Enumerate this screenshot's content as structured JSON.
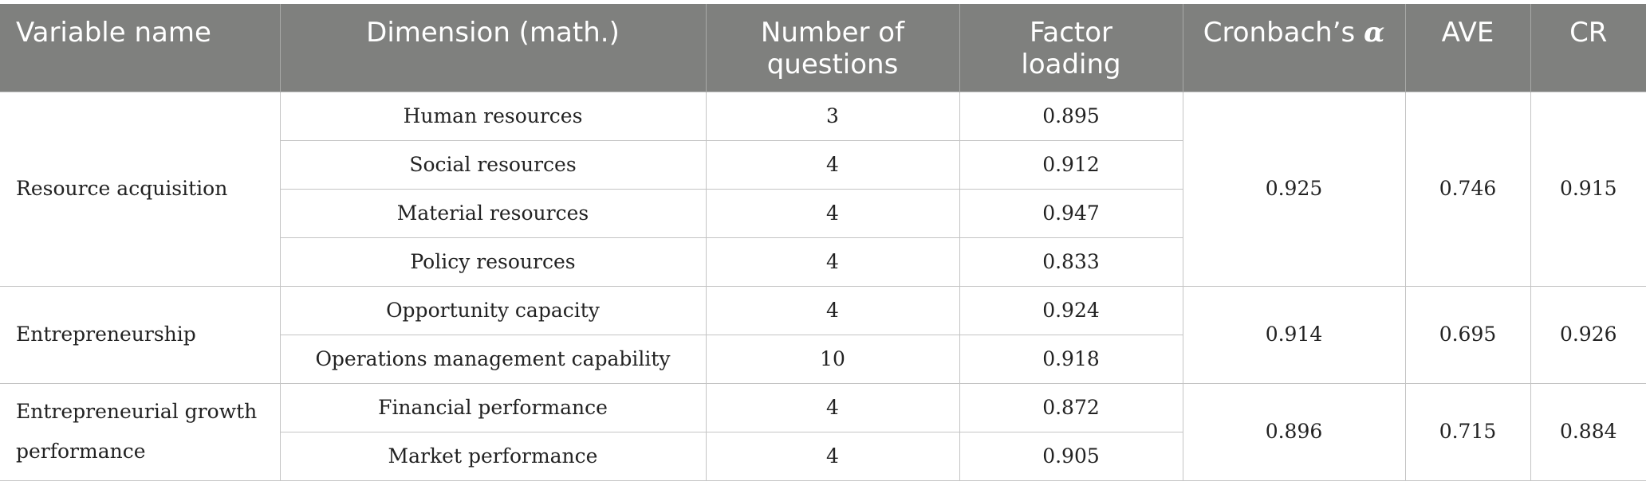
{
  "headers": {
    "variable": "Variable name",
    "dimension": "Dimension (math.)",
    "questions_line1": "Number of",
    "questions_line2": "questions",
    "loading_line1": "Factor",
    "loading_line2": "loading",
    "cronbach": "Cronbach’s",
    "cronbach_symbol": "α",
    "ave": "AVE",
    "cr": "CR"
  },
  "groups": [
    {
      "variable": "Resource acquisition",
      "cronbach": "0.925",
      "ave": "0.746",
      "cr": "0.915",
      "rows": [
        {
          "dimension": "Human resources",
          "questions": "3",
          "loading": "0.895"
        },
        {
          "dimension": "Social resources",
          "questions": "4",
          "loading": "0.912"
        },
        {
          "dimension": "Material resources",
          "questions": "4",
          "loading": "0.947"
        },
        {
          "dimension": "Policy resources",
          "questions": "4",
          "loading": "0.833"
        }
      ]
    },
    {
      "variable": "Entrepreneurship",
      "cronbach": "0.914",
      "ave": "0.695",
      "cr": "0.926",
      "rows": [
        {
          "dimension": "Opportunity capacity",
          "questions": "4",
          "loading": "0.924"
        },
        {
          "dimension": "Operations management capability",
          "questions": "10",
          "loading": "0.918"
        }
      ]
    },
    {
      "variable": "Entrepreneurial growth performance",
      "cronbach": "0.896",
      "ave": "0.715",
      "cr": "0.884",
      "rows": [
        {
          "dimension": "Financial performance",
          "questions": "4",
          "loading": "0.872"
        },
        {
          "dimension": "Market performance",
          "questions": "4",
          "loading": "0.905"
        }
      ]
    }
  ]
}
